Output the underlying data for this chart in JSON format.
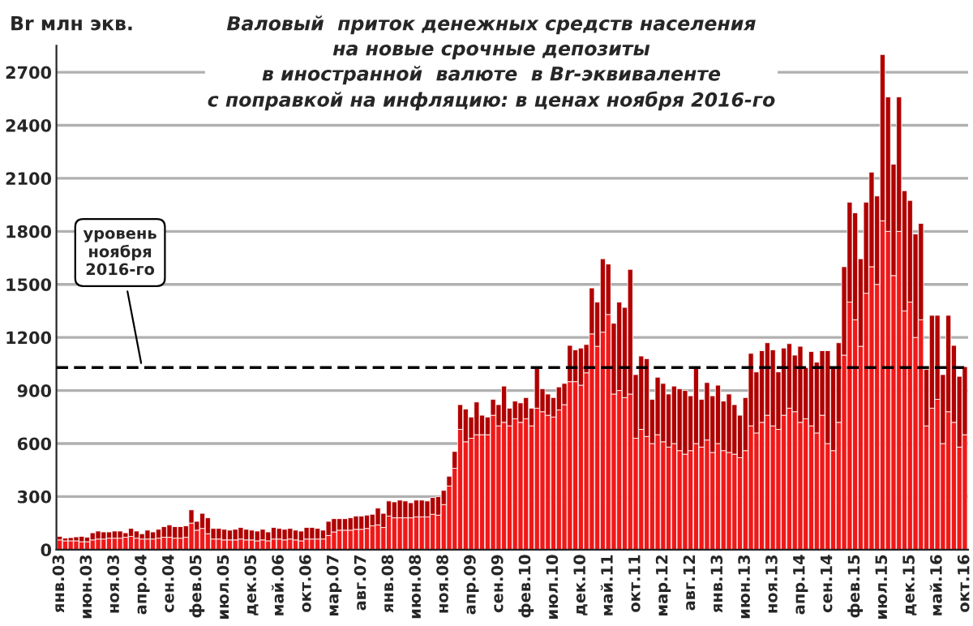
{
  "chart_data": {
    "type": "bar",
    "stacked": true,
    "title": "Валовый  приток денежных средств населения\nна новые срочные депозиты\nв иностранной  валюте  в Br-эквиваленте\nс поправкой на инфляцию: в ценах ноября 2016-го",
    "ylabel": "Br млн экв.",
    "categories": [
      "янв.03",
      null,
      null,
      null,
      null,
      "июн.03",
      null,
      null,
      null,
      null,
      "ноя.03",
      null,
      null,
      null,
      null,
      "апр.04",
      null,
      null,
      null,
      null,
      "сен.04",
      null,
      null,
      null,
      null,
      "фев.05",
      null,
      null,
      null,
      null,
      "июл.05",
      null,
      null,
      null,
      null,
      "дек.05",
      null,
      null,
      null,
      null,
      "май.06",
      null,
      null,
      null,
      null,
      "окт.06",
      null,
      null,
      null,
      null,
      "мар.07",
      null,
      null,
      null,
      null,
      "авг.07",
      null,
      null,
      null,
      null,
      "янв.08",
      null,
      null,
      null,
      null,
      "июн.08",
      null,
      null,
      null,
      null,
      "ноя.08",
      null,
      null,
      null,
      null,
      "апр.09",
      null,
      null,
      null,
      null,
      "сен.09",
      null,
      null,
      null,
      null,
      "фев.10",
      null,
      null,
      null,
      null,
      "июл.10",
      null,
      null,
      null,
      null,
      "дек.10",
      null,
      null,
      null,
      null,
      "май.11",
      null,
      null,
      null,
      null,
      "окт.11",
      null,
      null,
      null,
      null,
      "мар.12",
      null,
      null,
      null,
      null,
      "авг.12",
      null,
      null,
      null,
      null,
      "янв.13",
      null,
      null,
      null,
      null,
      "июн.13",
      null,
      null,
      null,
      null,
      "ноя.13",
      null,
      null,
      null,
      null,
      "апр.14",
      null,
      null,
      null,
      null,
      "сен.14",
      null,
      null,
      null,
      null,
      "фев.15",
      null,
      null,
      null,
      null,
      "июл.15",
      null,
      null,
      null,
      null,
      "дек.15",
      null,
      null,
      null,
      null,
      "май.16",
      null,
      null,
      null,
      null,
      "окт.16"
    ],
    "series": [
      {
        "color": "#f01818",
        "values": [
          55,
          50,
          50,
          50,
          45,
          45,
          55,
          60,
          60,
          65,
          65,
          65,
          70,
          75,
          65,
          60,
          60,
          60,
          65,
          70,
          70,
          65,
          65,
          70,
          150,
          110,
          120,
          90,
          60,
          60,
          55,
          55,
          55,
          60,
          55,
          55,
          50,
          55,
          50,
          60,
          60,
          55,
          60,
          55,
          50,
          60,
          60,
          60,
          60,
          80,
          100,
          110,
          110,
          110,
          115,
          115,
          120,
          135,
          140,
          125,
          190,
          180,
          180,
          180,
          180,
          185,
          185,
          185,
          200,
          195,
          255,
          360,
          460,
          680,
          610,
          630,
          650,
          650,
          650,
          760,
          700,
          720,
          700,
          740,
          720,
          740,
          700,
          800,
          780,
          760,
          750,
          790,
          820,
          950,
          950,
          930,
          1000,
          1220,
          1150,
          1230,
          1330,
          880,
          900,
          860,
          880,
          630,
          680,
          640,
          600,
          650,
          610,
          580,
          600,
          560,
          540,
          560,
          600,
          580,
          620,
          550,
          600,
          560,
          550,
          540,
          520,
          560,
          700,
          660,
          720,
          760,
          700,
          680,
          760,
          800,
          780,
          720,
          740,
          700,
          660,
          760,
          600,
          560,
          720,
          1100,
          1400,
          1300,
          1150,
          1450,
          1600,
          1500,
          1860,
          1800,
          1550,
          1800,
          1350,
          1400,
          1200,
          1300,
          700,
          800,
          850,
          600,
          780,
          720,
          580,
          650
        ]
      },
      {
        "color": "#b00000",
        "values": [
          20,
          15,
          18,
          22,
          30,
          25,
          40,
          45,
          40,
          35,
          40,
          40,
          25,
          45,
          40,
          30,
          50,
          40,
          50,
          60,
          70,
          65,
          65,
          65,
          75,
          50,
          85,
          90,
          60,
          60,
          60,
          55,
          60,
          65,
          60,
          55,
          55,
          60,
          50,
          65,
          60,
          60,
          60,
          55,
          55,
          65,
          65,
          60,
          50,
          80,
          75,
          65,
          65,
          70,
          75,
          75,
          75,
          65,
          95,
          80,
          85,
          90,
          100,
          95,
          85,
          95,
          95,
          90,
          95,
          105,
          80,
          55,
          95,
          140,
          185,
          120,
          185,
          110,
          100,
          90,
          120,
          205,
          100,
          100,
          110,
          120,
          100,
          235,
          130,
          120,
          110,
          130,
          120,
          205,
          180,
          210,
          160,
          260,
          250,
          415,
          285,
          400,
          500,
          510,
          705,
          360,
          415,
          440,
          250,
          325,
          330,
          300,
          325,
          350,
          360,
          310,
          430,
          270,
          325,
          320,
          330,
          280,
          330,
          280,
          240,
          300,
          410,
          345,
          405,
          410,
          430,
          325,
          380,
          365,
          320,
          430,
          290,
          420,
          400,
          365,
          525,
          470,
          450,
          500,
          565,
          605,
          495,
          515,
          535,
          500,
          940,
          760,
          630,
          760,
          680,
          575,
          585,
          545,
          320,
          525,
          475,
          390,
          545,
          435,
          400,
          385
        ]
      }
    ],
    "ylim": [
      0,
      2850
    ],
    "yticks": [
      0,
      300,
      600,
      900,
      1200,
      1500,
      1800,
      2100,
      2400,
      2700
    ],
    "grid": "y",
    "ref_lines": [
      {
        "axis": "y",
        "value": 1030,
        "label": "уровень\nноября\n2016-го",
        "color": "#000000",
        "line_style": "dashed"
      }
    ]
  }
}
